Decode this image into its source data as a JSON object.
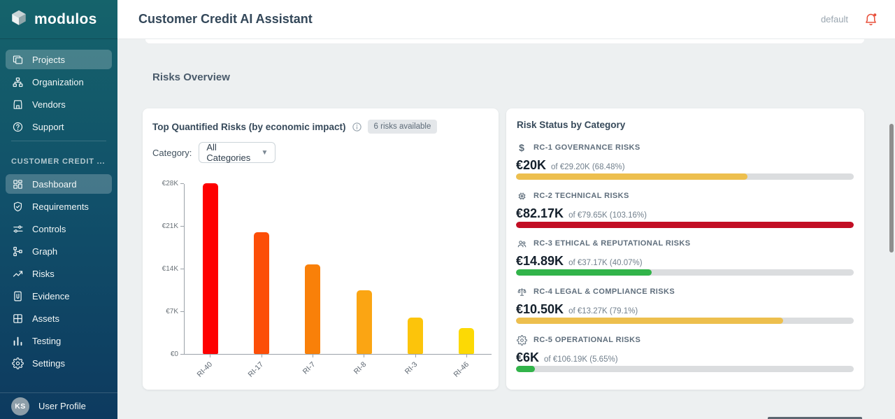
{
  "brand": {
    "name": "modulos"
  },
  "header": {
    "title": "Customer Credit AI Assistant",
    "environment": "default"
  },
  "sidebar": {
    "top_items": [
      {
        "label": "Projects",
        "icon": "folder-icon",
        "active": true
      },
      {
        "label": "Organization",
        "icon": "sitemap-icon",
        "active": false
      },
      {
        "label": "Vendors",
        "icon": "storefront-icon",
        "active": false
      },
      {
        "label": "Support",
        "icon": "help-icon",
        "active": false
      }
    ],
    "section_label": "CUSTOMER CREDIT ...",
    "project_items": [
      {
        "label": "Dashboard",
        "icon": "dashboard-icon",
        "active": true
      },
      {
        "label": "Requirements",
        "icon": "shield-check-icon",
        "active": false
      },
      {
        "label": "Controls",
        "icon": "controls-icon",
        "active": false
      },
      {
        "label": "Graph",
        "icon": "graph-icon",
        "active": false
      },
      {
        "label": "Risks",
        "icon": "trending-up-icon",
        "active": false
      },
      {
        "label": "Evidence",
        "icon": "document-clip-icon",
        "active": false
      },
      {
        "label": "Assets",
        "icon": "grid-icon",
        "active": false
      },
      {
        "label": "Testing",
        "icon": "bar-chart-icon",
        "active": false
      },
      {
        "label": "Settings",
        "icon": "gear-icon",
        "active": false
      }
    ],
    "user": {
      "initials": "KS",
      "label": "User Profile"
    }
  },
  "page": {
    "section_title": "Risks Overview"
  },
  "quantified_risks_card": {
    "title": "Top Quantified Risks (by economic impact)",
    "badge": "6 risks available",
    "category_label": "Category:",
    "category_value": "All Categories",
    "chart_data": {
      "type": "bar",
      "title": "Top Quantified Risks (by economic impact)",
      "categories": [
        "RI-40",
        "RI-17",
        "RI-7",
        "RI-8",
        "RI-3",
        "RI-46"
      ],
      "values": [
        28000,
        20000,
        14700,
        10500,
        6000,
        4200
      ],
      "colors": [
        "#fe0000",
        "#fc4e08",
        "#f98009",
        "#fba513",
        "#fcc40b",
        "#fcd905"
      ],
      "xlabel": "",
      "ylabel": "",
      "ylim": [
        0,
        28000
      ],
      "yticks": [
        0,
        7000,
        14000,
        21000,
        28000
      ],
      "ytick_labels": [
        "€0",
        "€7K",
        "€14K",
        "€21K",
        "€28K"
      ],
      "grid": false,
      "legend": "none"
    }
  },
  "risk_status_card": {
    "title": "Risk Status by Category",
    "items": [
      {
        "icon": "dollar-icon",
        "label": "RC-1 GOVERNANCE RISKS",
        "value": "€20K",
        "detail": "of €29.20K (68.48%)",
        "percent": 68.48,
        "color": "#edbf4e"
      },
      {
        "icon": "chip-icon",
        "label": "RC-2 TECHNICAL RISKS",
        "value": "€82.17K",
        "detail": "of €79.65K (103.16%)",
        "percent": 103.16,
        "color": "#c20e24"
      },
      {
        "icon": "people-icon",
        "label": "RC-3 ETHICAL & REPUTATIONAL RISKS",
        "value": "€14.89K",
        "detail": "of €37.17K (40.07%)",
        "percent": 40.07,
        "color": "#32b44a"
      },
      {
        "icon": "scale-icon",
        "label": "RC-4 LEGAL & COMPLIANCE RISKS",
        "value": "€10.50K",
        "detail": "of €13.27K (79.1%)",
        "percent": 79.1,
        "color": "#edbf4e"
      },
      {
        "icon": "gear-icon",
        "label": "RC-5 OPERATIONAL RISKS",
        "value": "€6K",
        "detail": "of €106.19K (5.65%)",
        "percent": 5.65,
        "color": "#32b44a"
      }
    ]
  }
}
